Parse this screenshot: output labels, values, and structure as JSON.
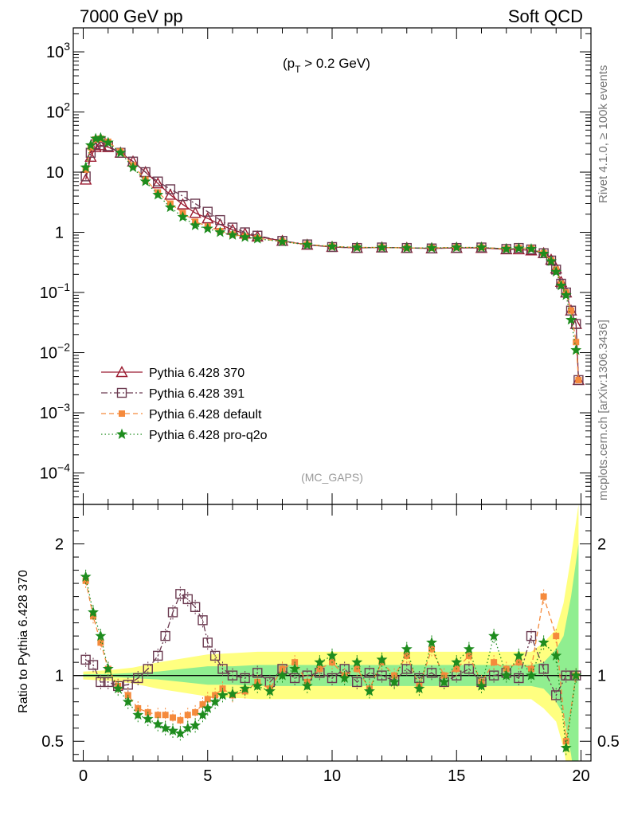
{
  "header": {
    "left_title": "7000 GeV pp",
    "right_title": "Soft QCD",
    "cut_label": "(p_T > 0.2 GeV)",
    "cut_prefix": "(p",
    "cut_sub": "T",
    "cut_suffix": " > 0.2 GeV)",
    "analysis_tag": "(MC_GAPS)",
    "side_label_top": "Rivet 4.1.0, ≥ 100k events",
    "side_label_bottom": "mcplots.cern.ch [arXiv:1306.3436]"
  },
  "chart_data": [
    {
      "type": "line",
      "yscale": "log",
      "title": "",
      "xlabel": "",
      "ylabel": "",
      "xlim": [
        -0.4,
        20.4
      ],
      "ylim": [
        3e-05,
        2500
      ],
      "y_tick_labels": [
        {
          "value": 1000,
          "base": "10",
          "exp": "3"
        },
        {
          "value": 100,
          "base": "10",
          "exp": "2"
        },
        {
          "value": 10,
          "base": "10",
          "exp": ""
        },
        {
          "value": 1,
          "base": "1",
          "exp": ""
        },
        {
          "value": 0.1,
          "base": "10",
          "exp": "−1"
        },
        {
          "value": 0.01,
          "base": "10",
          "exp": "−2"
        },
        {
          "value": 0.001,
          "base": "10",
          "exp": "−3"
        },
        {
          "value": 0.0001,
          "base": "10",
          "exp": "−4"
        }
      ],
      "legend_position": "lower-left",
      "series": [
        {
          "name": "Pythia 6.428 370",
          "color": "#9b1b30",
          "marker": "triangle-open",
          "dash": "solid",
          "x": [
            0.1,
            0.3,
            0.5,
            0.7,
            1.0,
            1.5,
            2.0,
            2.5,
            3.0,
            3.5,
            4.0,
            4.5,
            5.0,
            5.5,
            6.0,
            6.5,
            7.0,
            8.0,
            9.0,
            10.0,
            11.0,
            12.0,
            13.0,
            14.0,
            15.0,
            16.0,
            17.0,
            17.5,
            18.0,
            18.5,
            18.8,
            19.0,
            19.2,
            19.4,
            19.6,
            19.8,
            19.9
          ],
          "y": [
            7.5,
            18,
            26,
            28,
            26,
            21,
            15,
            10,
            6.5,
            4.2,
            2.9,
            2.1,
            1.7,
            1.35,
            1.1,
            0.95,
            0.85,
            0.72,
            0.62,
            0.57,
            0.55,
            0.56,
            0.55,
            0.54,
            0.55,
            0.55,
            0.52,
            0.52,
            0.5,
            0.45,
            0.35,
            0.25,
            0.15,
            0.1,
            0.05,
            0.03,
            0.0035
          ]
        },
        {
          "name": "Pythia 6.428 391",
          "color": "#6b3a50",
          "marker": "square-open",
          "dash": "dashdot",
          "x": [
            0.1,
            0.3,
            0.5,
            0.7,
            1.0,
            1.5,
            2.0,
            2.5,
            3.0,
            3.5,
            4.0,
            4.5,
            5.0,
            5.5,
            6.0,
            6.5,
            7.0,
            8.0,
            9.0,
            10.0,
            11.0,
            12.0,
            13.0,
            14.0,
            15.0,
            16.0,
            17.0,
            17.5,
            18.0,
            18.5,
            18.8,
            19.0,
            19.2,
            19.4,
            19.6,
            19.8,
            19.9
          ],
          "y": [
            8.5,
            21,
            29,
            32,
            27,
            21,
            15,
            10,
            7,
            5.2,
            4,
            3,
            2.2,
            1.6,
            1.2,
            1.0,
            0.88,
            0.72,
            0.63,
            0.57,
            0.55,
            0.56,
            0.55,
            0.54,
            0.55,
            0.56,
            0.53,
            0.55,
            0.52,
            0.45,
            0.34,
            0.24,
            0.14,
            0.1,
            0.05,
            0.03,
            0.0035
          ]
        },
        {
          "name": "Pythia 6.428 default",
          "color": "#f58a3c",
          "marker": "square-filled",
          "dash": "dashed",
          "x": [
            0.1,
            0.3,
            0.5,
            0.7,
            1.0,
            1.5,
            2.0,
            2.5,
            3.0,
            3.5,
            4.0,
            4.5,
            5.0,
            5.5,
            6.0,
            6.5,
            7.0,
            8.0,
            9.0,
            10.0,
            11.0,
            12.0,
            13.0,
            14.0,
            15.0,
            16.0,
            17.0,
            17.5,
            18.0,
            18.5,
            18.8,
            19.0,
            19.2,
            19.4,
            19.6,
            19.8,
            19.9
          ],
          "y": [
            11,
            26,
            35,
            36,
            32,
            22,
            13,
            7.5,
            4.6,
            3.0,
            2.1,
            1.5,
            1.25,
            1.05,
            0.92,
            0.85,
            0.8,
            0.7,
            0.63,
            0.58,
            0.56,
            0.56,
            0.55,
            0.55,
            0.56,
            0.56,
            0.53,
            0.55,
            0.54,
            0.45,
            0.34,
            0.24,
            0.14,
            0.1,
            0.05,
            0.015,
            0.0035
          ]
        },
        {
          "name": "Pythia 6.428 pro-q2o",
          "color": "#1e8c1e",
          "marker": "star",
          "dash": "dotted",
          "x": [
            0.1,
            0.3,
            0.5,
            0.7,
            1.0,
            1.5,
            2.0,
            2.5,
            3.0,
            3.5,
            4.0,
            4.5,
            5.0,
            5.5,
            6.0,
            6.5,
            7.0,
            8.0,
            9.0,
            10.0,
            11.0,
            12.0,
            13.0,
            14.0,
            15.0,
            16.0,
            17.0,
            17.5,
            18.0,
            18.5,
            18.8,
            19.0,
            19.2,
            19.4,
            19.6,
            19.8
          ],
          "y": [
            12,
            28,
            36,
            37,
            31,
            21,
            12,
            7,
            4.2,
            2.6,
            1.8,
            1.3,
            1.15,
            1.0,
            0.9,
            0.83,
            0.78,
            0.7,
            0.62,
            0.58,
            0.56,
            0.56,
            0.55,
            0.55,
            0.56,
            0.56,
            0.53,
            0.54,
            0.53,
            0.44,
            0.33,
            0.22,
            0.13,
            0.09,
            0.035,
            0.011
          ]
        }
      ]
    },
    {
      "type": "line",
      "title": "",
      "xlabel": "",
      "ylabel": "Ratio to Pythia 6.428 370",
      "xlim": [
        -0.4,
        20.4
      ],
      "ylim": [
        0.35,
        2.3
      ],
      "y_tick_labels": [
        "0.5",
        "1",
        "2"
      ],
      "y_tick_values": [
        0.5,
        1,
        2
      ],
      "x_tick_labels": [
        "0",
        "5",
        "10",
        "15",
        "20"
      ],
      "x_tick_values": [
        0,
        5,
        10,
        15,
        20
      ],
      "reference_line": 1,
      "band_inner_color": "#90ee90",
      "band_outer_color": "#ffff80",
      "band": {
        "x": [
          0,
          1,
          2,
          3,
          4,
          5,
          6,
          7,
          8,
          9,
          10,
          11,
          12,
          13,
          14,
          15,
          16,
          17,
          18,
          18.5,
          19,
          19.3,
          19.6,
          19.9
        ],
        "inner": [
          0.01,
          0.01,
          0.02,
          0.03,
          0.05,
          0.07,
          0.07,
          0.08,
          0.08,
          0.08,
          0.08,
          0.08,
          0.08,
          0.08,
          0.08,
          0.08,
          0.08,
          0.08,
          0.08,
          0.1,
          0.2,
          0.3,
          0.6,
          1.0
        ],
        "outer": [
          0.03,
          0.04,
          0.06,
          0.1,
          0.13,
          0.16,
          0.17,
          0.18,
          0.18,
          0.18,
          0.18,
          0.18,
          0.18,
          0.18,
          0.18,
          0.18,
          0.18,
          0.18,
          0.18,
          0.25,
          0.35,
          0.55,
          0.9,
          1.3
        ]
      },
      "series": [
        {
          "name": "Pythia 6.428 370",
          "color": "#9b1b30",
          "marker": "none",
          "dash": "solid",
          "x": [
            0,
            20
          ],
          "y": [
            1,
            1
          ]
        },
        {
          "name": "Pythia 6.428 391",
          "color": "#6b3a50",
          "marker": "square-open",
          "dash": "dashdot",
          "x": [
            0.1,
            0.4,
            0.7,
            1.0,
            1.4,
            1.8,
            2.2,
            2.6,
            3.0,
            3.3,
            3.6,
            3.9,
            4.2,
            4.5,
            4.8,
            5.0,
            5.3,
            5.6,
            6.0,
            6.5,
            7.0,
            7.5,
            8.0,
            8.5,
            9.0,
            9.5,
            10.0,
            10.5,
            11.0,
            11.5,
            12.0,
            12.5,
            13.0,
            13.5,
            14.0,
            14.5,
            15.0,
            15.5,
            16.0,
            16.5,
            17.0,
            17.5,
            18.0,
            18.5,
            19.0,
            19.4,
            19.8
          ],
          "y": [
            1.12,
            1.08,
            0.95,
            0.95,
            0.92,
            0.93,
            0.98,
            1.05,
            1.15,
            1.3,
            1.48,
            1.62,
            1.58,
            1.52,
            1.42,
            1.25,
            1.15,
            1.05,
            1.0,
            0.98,
            1.02,
            0.95,
            1.05,
            0.98,
            1.0,
            1.02,
            0.98,
            1.05,
            0.95,
            1.02,
            1.0,
            0.96,
            1.05,
            0.98,
            1.02,
            0.95,
            1.0,
            1.05,
            0.95,
            1.0,
            1.02,
            0.98,
            1.3,
            1.05,
            0.85,
            1.0,
            1.0
          ]
        },
        {
          "name": "Pythia 6.428 default",
          "color": "#f58a3c",
          "marker": "square-filled",
          "dash": "dashed",
          "x": [
            0.1,
            0.4,
            0.7,
            1.0,
            1.4,
            1.8,
            2.2,
            2.6,
            3.0,
            3.3,
            3.6,
            3.9,
            4.2,
            4.5,
            4.8,
            5.0,
            5.3,
            5.6,
            6.0,
            6.5,
            7.0,
            7.5,
            8.0,
            8.5,
            9.0,
            9.5,
            10.0,
            10.5,
            11.0,
            11.5,
            12.0,
            12.5,
            13.0,
            13.5,
            14.0,
            14.5,
            15.0,
            15.5,
            16.0,
            16.5,
            17.0,
            17.5,
            18.0,
            18.5,
            19.0,
            19.4,
            19.8
          ],
          "y": [
            1.72,
            1.45,
            1.25,
            1.05,
            0.92,
            0.85,
            0.75,
            0.72,
            0.7,
            0.7,
            0.68,
            0.66,
            0.7,
            0.72,
            0.78,
            0.82,
            0.85,
            0.9,
            0.85,
            0.88,
            0.95,
            0.9,
            1.05,
            1.1,
            0.95,
            1.05,
            1.1,
            1.0,
            1.05,
            0.9,
            1.1,
            1.0,
            1.15,
            0.92,
            1.2,
            1.0,
            1.05,
            1.15,
            0.95,
            1.1,
            1.05,
            1.1,
            1.05,
            1.6,
            1.3,
            0.5,
            1.0
          ]
        },
        {
          "name": "Pythia 6.428 pro-q2o",
          "color": "#1e8c1e",
          "marker": "star",
          "dash": "dotted",
          "x": [
            0.1,
            0.4,
            0.7,
            1.0,
            1.4,
            1.8,
            2.2,
            2.6,
            3.0,
            3.3,
            3.6,
            3.9,
            4.2,
            4.5,
            4.8,
            5.0,
            5.3,
            5.6,
            6.0,
            6.5,
            7.0,
            7.5,
            8.0,
            8.5,
            9.0,
            9.5,
            10.0,
            10.5,
            11.0,
            11.5,
            12.0,
            12.5,
            13.0,
            13.5,
            14.0,
            14.5,
            15.0,
            15.5,
            16.0,
            16.5,
            17.0,
            17.5,
            18.0,
            18.5,
            19.0,
            19.4,
            19.8
          ],
          "y": [
            1.75,
            1.48,
            1.3,
            1.05,
            0.9,
            0.8,
            0.7,
            0.67,
            0.63,
            0.6,
            0.58,
            0.56,
            0.6,
            0.62,
            0.7,
            0.75,
            0.8,
            0.85,
            0.86,
            0.9,
            0.92,
            0.88,
            1.0,
            1.05,
            0.92,
            1.1,
            1.15,
            0.98,
            1.1,
            0.88,
            1.12,
            0.95,
            1.2,
            0.9,
            1.25,
            0.95,
            1.1,
            1.2,
            0.92,
            1.3,
            1.0,
            1.15,
            1.0,
            1.25,
            1.15,
            0.45,
            1.0
          ]
        }
      ]
    }
  ]
}
